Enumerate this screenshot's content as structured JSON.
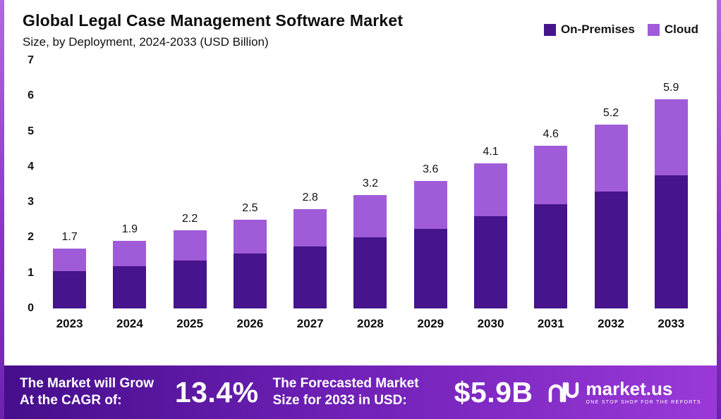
{
  "header": {
    "title": "Global Legal Case Management Software Market",
    "subtitle": "Size, by Deployment, 2024-2033 (USD Billion)"
  },
  "legend": {
    "items": [
      {
        "label": "On-Premises",
        "color": "#46148c"
      },
      {
        "label": "Cloud",
        "color": "#a05bd9"
      }
    ]
  },
  "chart_data": {
    "type": "bar",
    "stacked": true,
    "title": "Global Legal Case Management Software Market Size, by Deployment, 2024-2033 (USD Billion)",
    "categories": [
      "2023",
      "2024",
      "2025",
      "2026",
      "2027",
      "2028",
      "2029",
      "2030",
      "2031",
      "2032",
      "2033"
    ],
    "series": [
      {
        "name": "On-Premises",
        "color": "#46148c",
        "values": [
          1.05,
          1.2,
          1.35,
          1.55,
          1.75,
          2.0,
          2.25,
          2.6,
          2.95,
          3.3,
          3.75
        ]
      },
      {
        "name": "Cloud",
        "color": "#a05bd9",
        "values": [
          0.65,
          0.7,
          0.85,
          0.95,
          1.05,
          1.2,
          1.35,
          1.5,
          1.65,
          1.9,
          2.15
        ]
      }
    ],
    "totals": [
      "1.7",
      "1.9",
      "2.2",
      "2.5",
      "2.8",
      "3.2",
      "3.6",
      "4.1",
      "4.6",
      "5.2",
      "5.9"
    ],
    "ylim": [
      0,
      7
    ],
    "yticks": [
      0,
      1,
      2,
      3,
      4,
      5,
      6,
      7
    ],
    "xlabel": "",
    "ylabel": "",
    "legend_position": "top-right",
    "grid": false
  },
  "footer": {
    "cagr_label": "The Market will Grow At the CAGR of:",
    "cagr_value": "13.4%",
    "forecast_label": "The Forecasted Market Size for 2033 in USD:",
    "forecast_value": "$5.9B",
    "brand": "market.us",
    "tagline": "ONE STOP SHOP FOR THE REPORTS"
  }
}
